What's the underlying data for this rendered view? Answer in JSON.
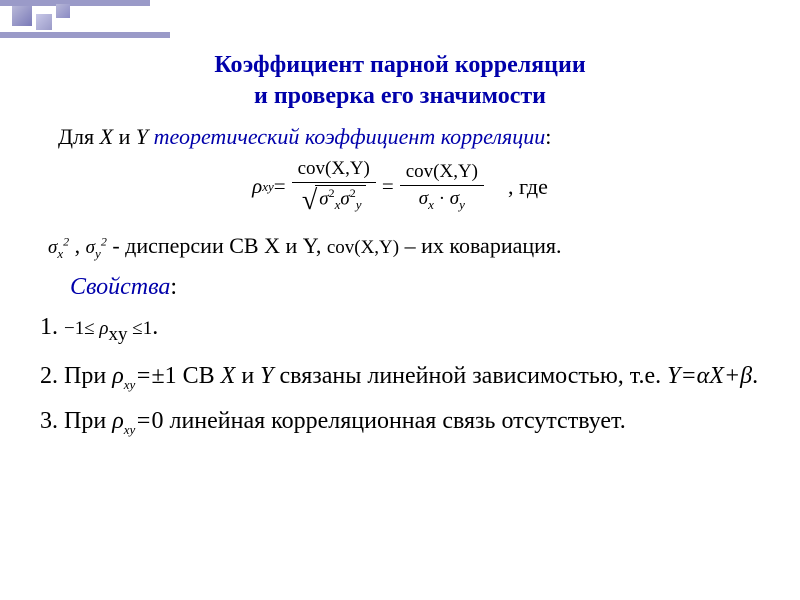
{
  "title": {
    "line1": "Коэффициент парной корреляции",
    "line2": "и проверка его значимости",
    "color": "#0000aa",
    "fontsize": 24
  },
  "intro": {
    "prefix": "Для ",
    "X": "X",
    "and": " и ",
    "Y": "Y",
    "sp": " ",
    "term": "теоретический коэффициент корреляции",
    "colon": ":",
    "term_color": "#0000aa"
  },
  "formula": {
    "lhs": "ρ",
    "lhs_sub": "xy",
    "eq": " = ",
    "cov_text": "cov(X,Y)",
    "sigma": "σ",
    "x_sub": "x",
    "y_sub": "y",
    "two": "2",
    "dot": " · ",
    "gde": ", где"
  },
  "dispersion": {
    "sigma": "σ",
    "x_sub": "x",
    "y_sub": "y",
    "two": "2",
    "comma": " , ",
    "text1": " - дисперсии ",
    "CB": "СВ ",
    "X": "X",
    "and": " и ",
    "Y": "Y",
    "comma2": ",   ",
    "cov": "cov(X,Y)",
    "text2": "  – их ковариация."
  },
  "properties_label": "Свойства",
  "properties_colon": ":",
  "item1": {
    "num": "1.  ",
    "ineq_low": "−1≤ ",
    "rho": "ρ",
    "sub": "xy",
    "ineq_high": " ≤1",
    "dot": "."
  },
  "item2": {
    "num": "2. ",
    "pri": "При ",
    "rho": "ρ",
    "sub": "xy",
    "eq": "=",
    "pm": "±1  СВ  ",
    "X": "X",
    "and": "  и  ",
    "Y": "Y",
    "text": "  связаны  линейной зависимостью, т.е. ",
    "YeqaX": "Y=αX+β",
    "dot": "."
  },
  "item3": {
    "num": "3. ",
    "pri": "При ",
    "rho": "ρ",
    "sub": "xy",
    "eq": "=",
    "zero": "0  линейная  корреляционная  связь отсутствует."
  },
  "colors": {
    "title": "#0000aa",
    "text": "#000000",
    "decoration": "#9a9ac8",
    "background": "#ffffff"
  }
}
